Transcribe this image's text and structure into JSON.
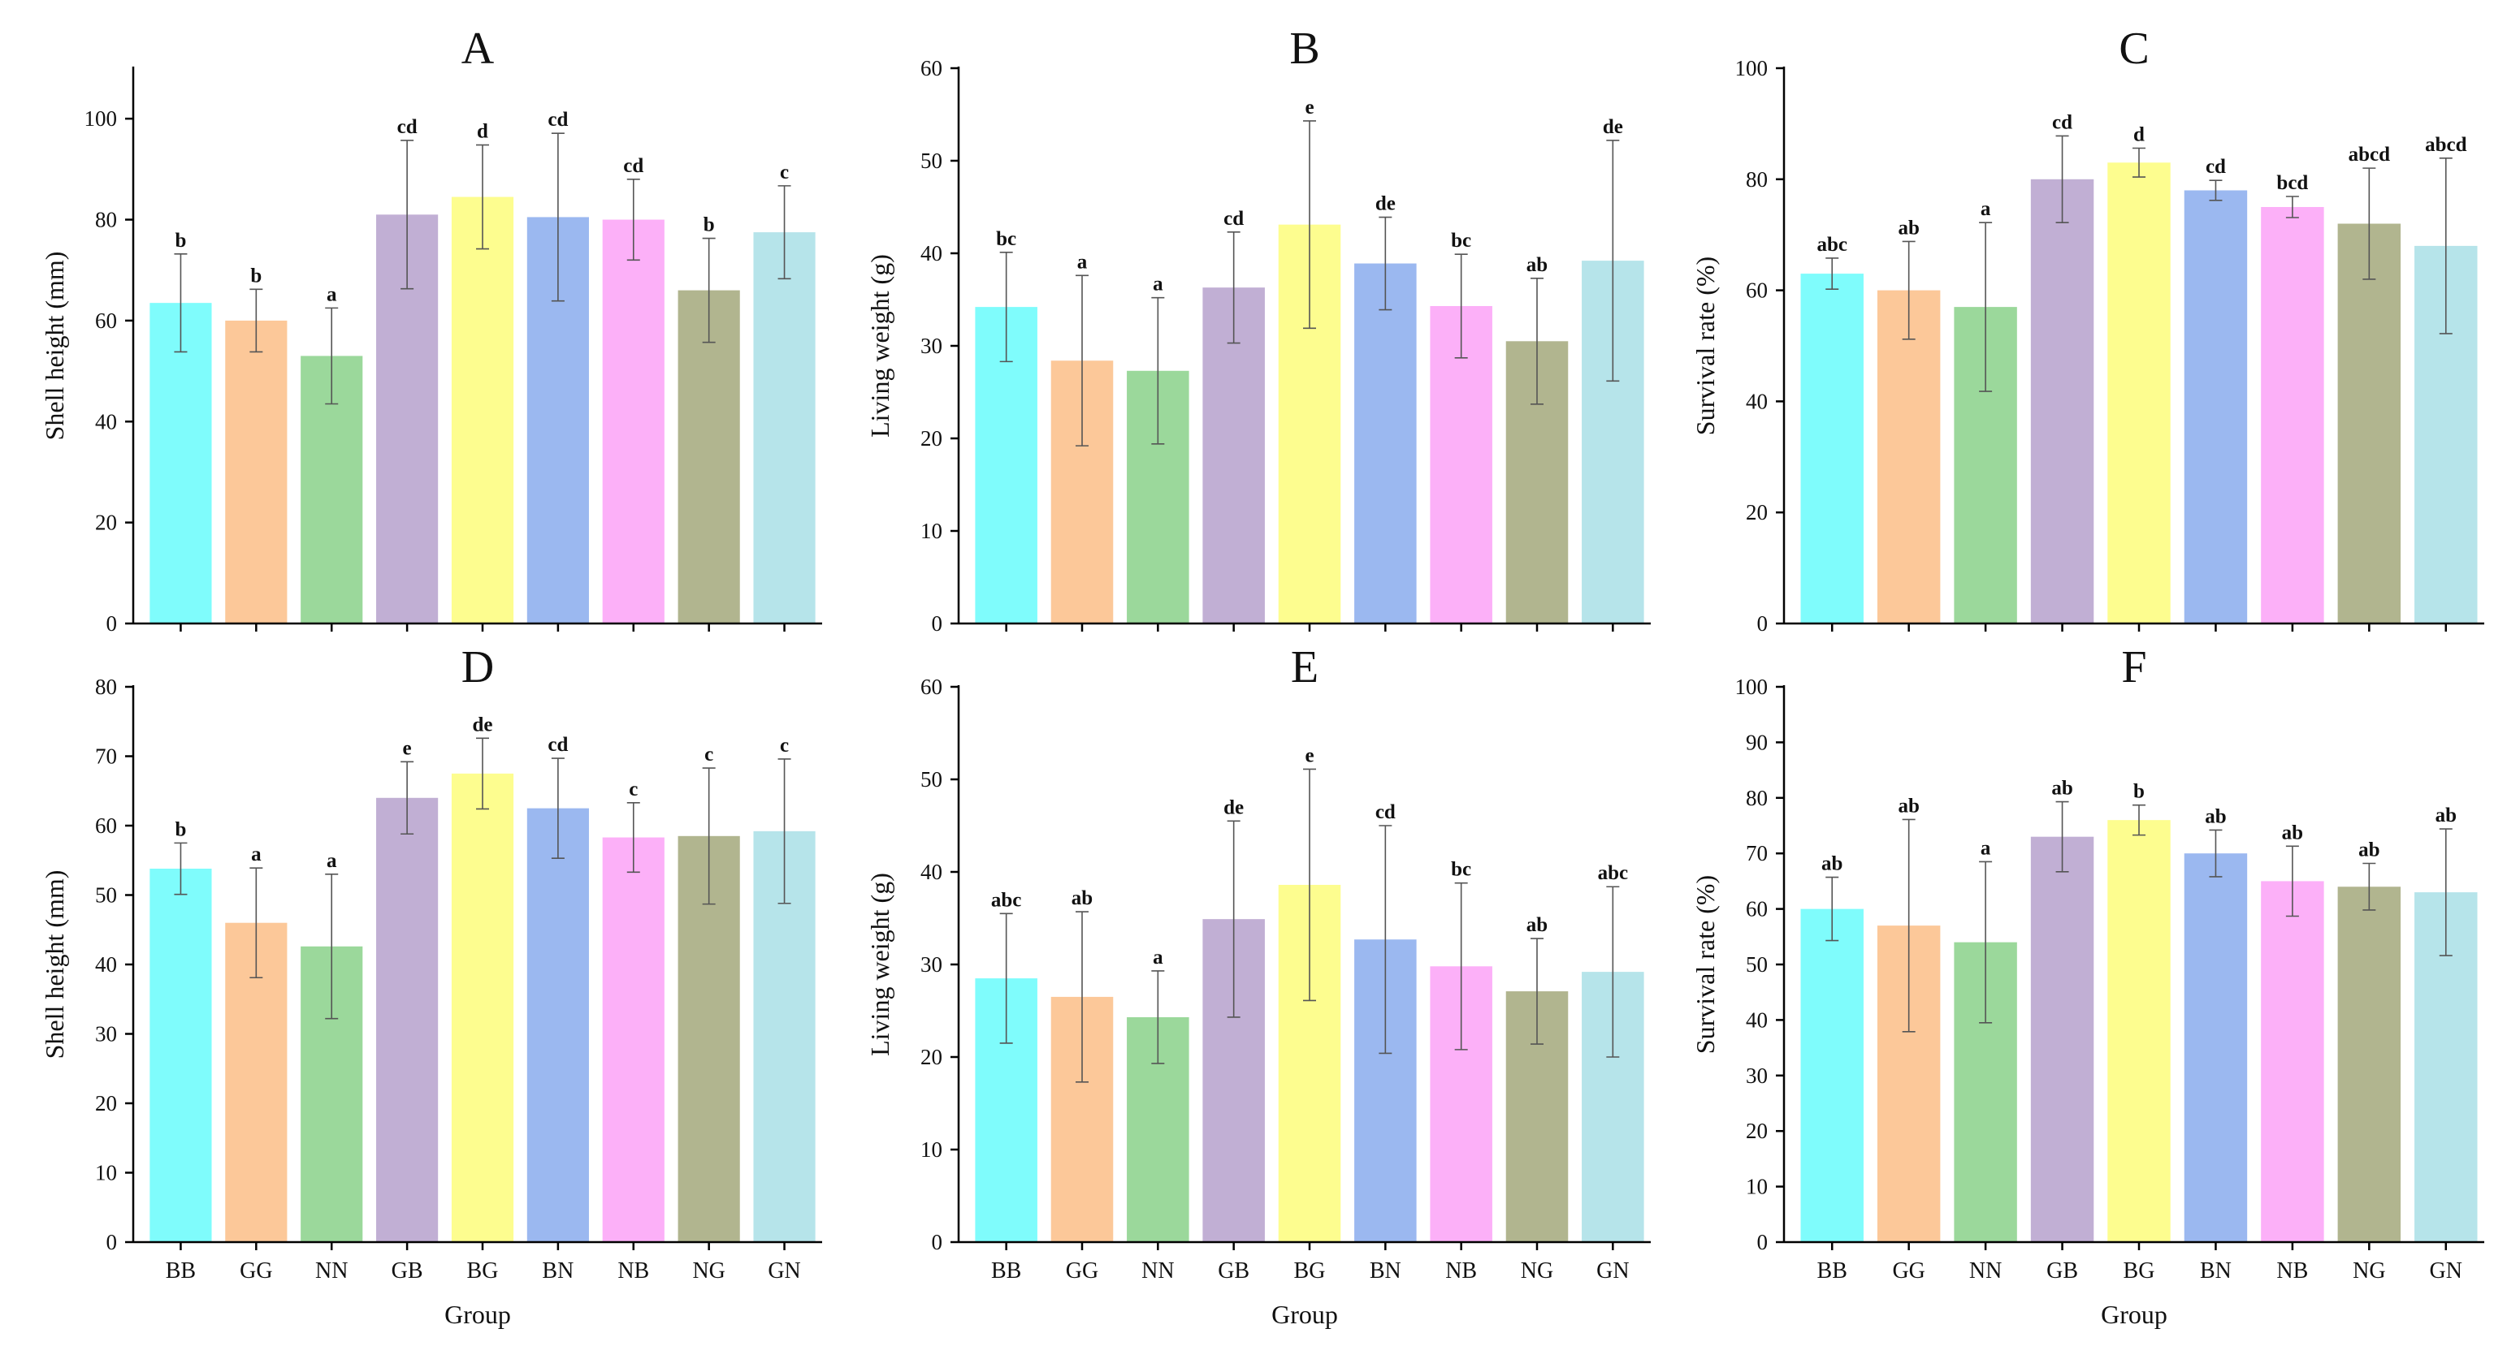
{
  "chart_data": [
    {
      "type": "bar",
      "title": "A",
      "xlabel": "",
      "ylabel": "Shell height (mm)",
      "ylim": [
        0,
        110
      ],
      "yticks": [
        0,
        20,
        40,
        60,
        80,
        100
      ],
      "categories": [
        "BB",
        "GG",
        "NN",
        "GB",
        "BG",
        "BN",
        "NB",
        "NG",
        "GN"
      ],
      "values": [
        63.5,
        60,
        53,
        81,
        84.5,
        80.5,
        80,
        66,
        77.5
      ],
      "errors": [
        9.7,
        6.2,
        9.5,
        14.7,
        10.3,
        16.6,
        8.0,
        10.3,
        9.2
      ],
      "labels": [
        "b",
        "b",
        "a",
        "cd",
        "d",
        "cd",
        "cd",
        "b",
        "c"
      ],
      "colors": [
        "#7ffcfc",
        "#fcc899",
        "#9bd89b",
        "#c1afd4",
        "#fdfd8f",
        "#9bb8f0",
        "#fcb0f8",
        "#b1b58f",
        "#b6e4ea"
      ]
    },
    {
      "type": "bar",
      "title": "B",
      "xlabel": "",
      "ylabel": "Living weight (g)",
      "ylim": [
        0,
        60
      ],
      "yticks": [
        0,
        10,
        20,
        30,
        40,
        50,
        60
      ],
      "categories": [
        "BB",
        "GG",
        "NN",
        "GB",
        "BG",
        "BN",
        "NB",
        "NG",
        "GN"
      ],
      "values": [
        34.2,
        28.4,
        27.3,
        36.3,
        43.1,
        38.9,
        34.3,
        30.5,
        39.2
      ],
      "errors": [
        5.9,
        9.2,
        7.9,
        6.0,
        11.2,
        5.0,
        5.6,
        6.8,
        13.0
      ],
      "labels": [
        "bc",
        "a",
        "a",
        "cd",
        "e",
        "de",
        "bc",
        "ab",
        "de"
      ],
      "colors": [
        "#7ffcfc",
        "#fcc899",
        "#9bd89b",
        "#c1afd4",
        "#fdfd8f",
        "#9bb8f0",
        "#fcb0f8",
        "#b1b58f",
        "#b6e4ea"
      ]
    },
    {
      "type": "bar",
      "title": "C",
      "xlabel": "",
      "ylabel": "Survival rate (%)",
      "ylim": [
        0,
        100
      ],
      "yticks": [
        0,
        20,
        40,
        60,
        80,
        100
      ],
      "categories": [
        "BB",
        "GG",
        "NN",
        "GB",
        "BG",
        "BN",
        "NB",
        "NG",
        "GN"
      ],
      "values": [
        63,
        60,
        57,
        80,
        83,
        78,
        75,
        72,
        68
      ],
      "errors": [
        2.8,
        8.8,
        15.2,
        7.8,
        2.6,
        1.8,
        1.9,
        10.0,
        15.8
      ],
      "labels": [
        "abc",
        "ab",
        "a",
        "cd",
        "d",
        "cd",
        "bcd",
        "abcd",
        "abcd"
      ],
      "colors": [
        "#7ffcfc",
        "#fcc899",
        "#9bd89b",
        "#c1afd4",
        "#fdfd8f",
        "#9bb8f0",
        "#fcb0f8",
        "#b1b58f",
        "#b6e4ea"
      ]
    },
    {
      "type": "bar",
      "title": "D",
      "xlabel": "Group",
      "ylabel": "Shell height (mm)",
      "ylim": [
        0,
        80
      ],
      "yticks": [
        0,
        10,
        20,
        30,
        40,
        50,
        60,
        70,
        80
      ],
      "categories": [
        "BB",
        "GG",
        "NN",
        "GB",
        "BG",
        "BN",
        "NB",
        "NG",
        "GN"
      ],
      "values": [
        53.8,
        46,
        42.6,
        64,
        67.5,
        62.5,
        58.3,
        58.5,
        59.2
      ],
      "errors": [
        3.7,
        7.9,
        10.4,
        5.2,
        5.1,
        7.2,
        5.0,
        9.8,
        10.4
      ],
      "labels": [
        "b",
        "a",
        "a",
        "e",
        "de",
        "cd",
        "c",
        "c",
        "c"
      ],
      "colors": [
        "#7ffcfc",
        "#fcc899",
        "#9bd89b",
        "#c1afd4",
        "#fdfd8f",
        "#9bb8f0",
        "#fcb0f8",
        "#b1b58f",
        "#b6e4ea"
      ]
    },
    {
      "type": "bar",
      "title": "E",
      "xlabel": "Group",
      "ylabel": "Living weight (g)",
      "ylim": [
        0,
        60
      ],
      "yticks": [
        0,
        10,
        20,
        30,
        40,
        50,
        60
      ],
      "categories": [
        "BB",
        "GG",
        "NN",
        "GB",
        "BG",
        "BN",
        "NB",
        "NG",
        "GN"
      ],
      "values": [
        28.5,
        26.5,
        24.3,
        34.9,
        38.6,
        32.7,
        29.8,
        27.1,
        29.2
      ],
      "errors": [
        7.0,
        9.2,
        5.0,
        10.6,
        12.5,
        12.3,
        9.0,
        5.7,
        9.2
      ],
      "labels": [
        "abc",
        "ab",
        "a",
        "de",
        "e",
        "cd",
        "bc",
        "ab",
        "abc"
      ],
      "colors": [
        "#7ffcfc",
        "#fcc899",
        "#9bd89b",
        "#c1afd4",
        "#fdfd8f",
        "#9bb8f0",
        "#fcb0f8",
        "#b1b58f",
        "#b6e4ea"
      ]
    },
    {
      "type": "bar",
      "title": "F",
      "xlabel": "Group",
      "ylabel": "Survival rate (%)",
      "ylim": [
        0,
        100
      ],
      "yticks": [
        0,
        10,
        20,
        30,
        40,
        50,
        60,
        70,
        80,
        90,
        100
      ],
      "categories": [
        "BB",
        "GG",
        "NN",
        "GB",
        "BG",
        "BN",
        "NB",
        "NG",
        "GN"
      ],
      "values": [
        60,
        57,
        54,
        73,
        76,
        70,
        65,
        64,
        63
      ],
      "errors": [
        5.7,
        19.1,
        14.5,
        6.3,
        2.7,
        4.2,
        6.3,
        4.2,
        11.4
      ],
      "labels": [
        "ab",
        "ab",
        "a",
        "ab",
        "b",
        "ab",
        "ab",
        "ab",
        "ab"
      ],
      "colors": [
        "#7ffcfc",
        "#fcc899",
        "#9bd89b",
        "#c1afd4",
        "#fdfd8f",
        "#9bb8f0",
        "#fcb0f8",
        "#b1b58f",
        "#b6e4ea"
      ]
    }
  ]
}
